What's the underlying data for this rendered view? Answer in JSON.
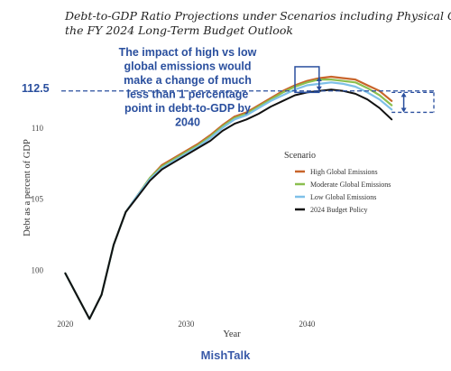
{
  "chart_data": {
    "type": "line",
    "title_line1": "Debt-to-GDP Ratio Projections under Scenarios including Physical Climate Risks in",
    "title_line2": "the FY 2024 Long-Term Budget Outlook",
    "xlabel": "Year",
    "ylabel": "Debt as a percent of GDP",
    "xlim": [
      2019,
      2049
    ],
    "ylim": [
      97.0,
      115.5
    ],
    "x_ticks": [
      2020,
      2030,
      2040
    ],
    "y_ticks": [
      100,
      105,
      110
    ],
    "x": [
      2020,
      2021,
      2022,
      2023,
      2024,
      2025,
      2026,
      2027,
      2028,
      2029,
      2030,
      2031,
      2032,
      2033,
      2034,
      2035,
      2036,
      2037,
      2038,
      2039,
      2040,
      2041,
      2042,
      2043,
      2044,
      2045,
      2046,
      2047
    ],
    "series": [
      {
        "name": "High Global Emissions",
        "color": "#c8642a",
        "values": [
          99.8,
          98.2,
          96.6,
          98.3,
          101.8,
          104.1,
          105.3,
          106.5,
          107.4,
          107.9,
          108.4,
          108.9,
          109.5,
          110.2,
          110.8,
          111.1,
          111.6,
          112.1,
          112.6,
          113.0,
          113.3,
          113.5,
          113.6,
          113.5,
          113.4,
          113.0,
          112.6,
          111.9
        ]
      },
      {
        "name": "Moderate Global Emissions",
        "color": "#8bbf4f",
        "values": [
          99.8,
          98.2,
          96.6,
          98.3,
          101.8,
          104.1,
          105.3,
          106.5,
          107.3,
          107.8,
          108.3,
          108.8,
          109.4,
          110.1,
          110.7,
          111.0,
          111.5,
          112.0,
          112.5,
          112.9,
          113.2,
          113.4,
          113.4,
          113.3,
          113.2,
          112.8,
          112.3,
          111.6
        ]
      },
      {
        "name": "Low Global Emissions",
        "color": "#7ec0e8",
        "values": [
          99.8,
          98.2,
          96.6,
          98.3,
          101.8,
          104.1,
          105.3,
          106.4,
          107.2,
          107.7,
          108.2,
          108.7,
          109.3,
          110.0,
          110.6,
          110.9,
          111.4,
          111.9,
          112.3,
          112.7,
          113.0,
          113.1,
          113.2,
          113.1,
          112.9,
          112.5,
          112.0,
          111.3
        ]
      },
      {
        "name": "2024 Budget Policy",
        "color": "#111111",
        "values": [
          99.8,
          98.2,
          96.6,
          98.3,
          101.8,
          104.1,
          105.2,
          106.3,
          107.1,
          107.6,
          108.1,
          108.6,
          109.1,
          109.8,
          110.3,
          110.6,
          111.0,
          111.5,
          111.9,
          112.3,
          112.5,
          112.6,
          112.7,
          112.6,
          112.4,
          112.0,
          111.4,
          110.6
        ]
      }
    ],
    "legend": {
      "title": "Scenario",
      "placement": "right-center"
    },
    "annotation": {
      "lines": [
        "The impact of high vs low",
        "global emissions would",
        "make a change of much",
        "less than 1 percentage",
        "point in debt-to-GDP by",
        "2040"
      ]
    },
    "callout_label": "112.5",
    "highlight_box": {
      "x_range": [
        2039,
        2041
      ],
      "y_range": [
        112.5,
        114.3
      ]
    },
    "gap_arrow_2040": {
      "x": 2041,
      "y_range": [
        112.6,
        113.6
      ]
    },
    "gap_arrow_2047": {
      "x_range": [
        2047,
        2049
      ],
      "y_range": [
        111.1,
        112.5
      ]
    },
    "grid": false,
    "accent_color": "#2a4f9e"
  },
  "watermark": "MishTalk"
}
